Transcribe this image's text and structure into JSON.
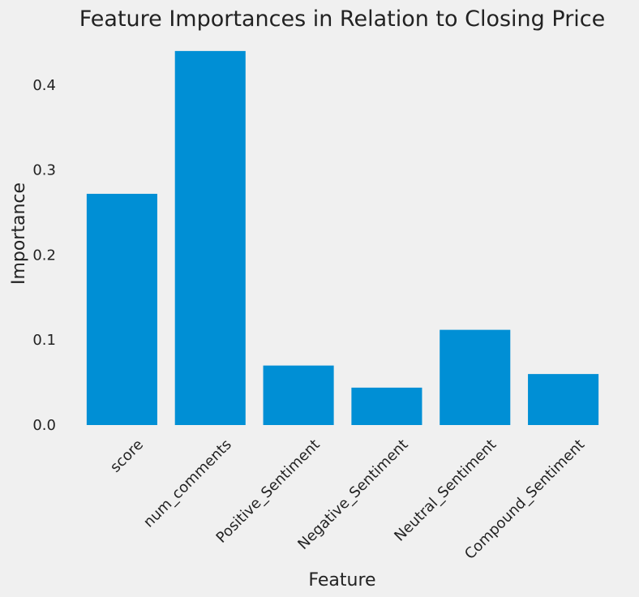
{
  "chart_data": {
    "type": "bar",
    "title": "Feature Importances in Relation to Closing Price",
    "xlabel": "Feature",
    "ylabel": "Importance",
    "categories": [
      "score",
      "num_comments",
      "Positive_Sentiment",
      "Negative_Sentiment",
      "Neutral_Sentiment",
      "Compound_Sentiment"
    ],
    "values": [
      0.272,
      0.44,
      0.07,
      0.044,
      0.112,
      0.06
    ],
    "yticks": [
      0.0,
      0.1,
      0.2,
      0.3,
      0.4
    ],
    "ytick_labels": [
      "0.0",
      "0.1",
      "0.2",
      "0.3",
      "0.4"
    ],
    "ylim": [
      0,
      0.44
    ],
    "grid": false,
    "bar_color": "#008fd5",
    "background_color": "#f0f0f0"
  }
}
